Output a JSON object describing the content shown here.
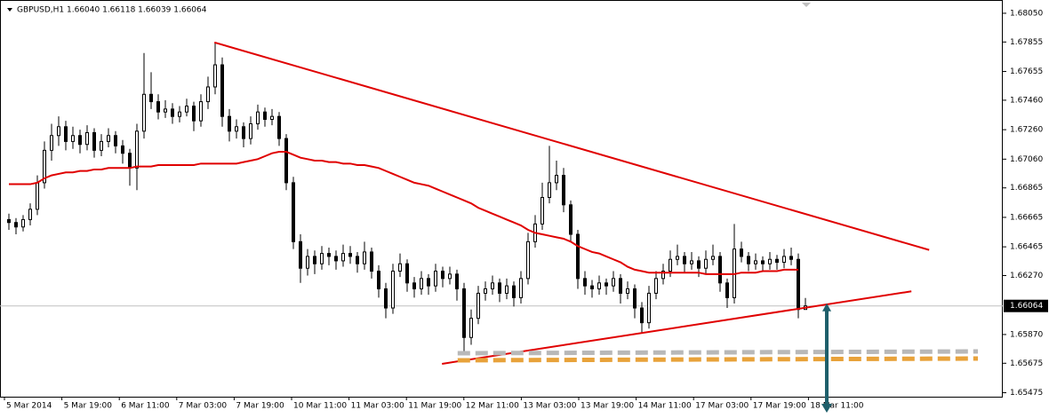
{
  "chart_data": {
    "type": "candlestick",
    "title": "GBPUSD,H1  1.66040 1.66118 1.66039 1.66064",
    "categories": [
      "5 Mar 2014",
      "5 Mar 19:00",
      "6 Mar 11:00",
      "7 Mar 03:00",
      "7 Mar 19:00",
      "10 Mar 11:00",
      "11 Mar 03:00",
      "11 Mar 19:00",
      "12 Mar 11:00",
      "13 Mar 03:00",
      "13 Mar 19:00",
      "14 Mar 11:00",
      "17 Mar 03:00",
      "17 Mar 19:00",
      "18 Mar 11:00"
    ],
    "ylim": [
      1.65448,
      1.6814
    ],
    "yticks": [
      {
        "value": 1.6805,
        "label": "1.68050"
      },
      1.67855,
      1.67655,
      {
        "value": 1.6746,
        "label": "1.67460"
      },
      {
        "value": 1.6726,
        "label": "1.67260"
      },
      {
        "value": 1.6706,
        "label": "1.67060"
      },
      1.66865,
      1.66665,
      1.66465,
      {
        "value": 1.6627,
        "label": "1.66270"
      },
      {
        "value": 1.6587,
        "label": "1.65870"
      },
      1.65675,
      1.65475
    ],
    "current_price": 1.66064,
    "up_color": "#ffffff",
    "down_color": "#000000",
    "ohlc": [
      [
        1.6665,
        1.6669,
        1.6658,
        1.6663
      ],
      [
        1.6663,
        1.6666,
        1.6655,
        1.666
      ],
      [
        1.666,
        1.6668,
        1.6657,
        1.6665
      ],
      [
        1.6665,
        1.6676,
        1.6661,
        1.6672
      ],
      [
        1.6672,
        1.6695,
        1.6668,
        1.669
      ],
      [
        1.669,
        1.6718,
        1.6686,
        1.6712
      ],
      [
        1.6712,
        1.673,
        1.6705,
        1.6722
      ],
      [
        1.6722,
        1.6735,
        1.6715,
        1.6728
      ],
      [
        1.6728,
        1.6732,
        1.6712,
        1.6718
      ],
      [
        1.6718,
        1.6728,
        1.6713,
        1.6722
      ],
      [
        1.6722,
        1.6726,
        1.671,
        1.6716
      ],
      [
        1.6716,
        1.6729,
        1.6712,
        1.6724
      ],
      [
        1.6724,
        1.6727,
        1.6707,
        1.6712
      ],
      [
        1.6712,
        1.6723,
        1.6708,
        1.6718
      ],
      [
        1.6718,
        1.6727,
        1.6714,
        1.6722
      ],
      [
        1.6722,
        1.6725,
        1.671,
        1.6715
      ],
      [
        1.6715,
        1.6719,
        1.6703,
        1.671
      ],
      [
        1.671,
        1.6713,
        1.6688,
        1.67
      ],
      [
        1.67,
        1.673,
        1.6685,
        1.6725
      ],
      [
        1.6725,
        1.6778,
        1.672,
        1.675
      ],
      [
        1.675,
        1.6765,
        1.674,
        1.6745
      ],
      [
        1.6745,
        1.675,
        1.6733,
        1.6738
      ],
      [
        1.6738,
        1.6746,
        1.6734,
        1.674
      ],
      [
        1.674,
        1.6744,
        1.673,
        1.6735
      ],
      [
        1.6735,
        1.6742,
        1.6731,
        1.6738
      ],
      [
        1.6738,
        1.6747,
        1.6735,
        1.6742
      ],
      [
        1.6742,
        1.6745,
        1.6725,
        1.6732
      ],
      [
        1.6732,
        1.675,
        1.6728,
        1.6745
      ],
      [
        1.6745,
        1.6762,
        1.674,
        1.6755
      ],
      [
        1.6755,
        1.6785,
        1.675,
        1.677
      ],
      [
        1.677,
        1.6775,
        1.6728,
        1.6735
      ],
      [
        1.6735,
        1.674,
        1.6718,
        1.6725
      ],
      [
        1.6725,
        1.6733,
        1.672,
        1.6728
      ],
      [
        1.6728,
        1.6731,
        1.6714,
        1.672
      ],
      [
        1.672,
        1.6735,
        1.6716,
        1.673
      ],
      [
        1.673,
        1.6743,
        1.6726,
        1.6738
      ],
      [
        1.6738,
        1.6741,
        1.6728,
        1.6733
      ],
      [
        1.6733,
        1.674,
        1.6729,
        1.6735
      ],
      [
        1.6735,
        1.6738,
        1.6715,
        1.672
      ],
      [
        1.672,
        1.6723,
        1.6685,
        1.669
      ],
      [
        1.669,
        1.6694,
        1.6645,
        1.665
      ],
      [
        1.665,
        1.6655,
        1.6622,
        1.6632
      ],
      [
        1.6632,
        1.6645,
        1.6627,
        1.664
      ],
      [
        1.664,
        1.6644,
        1.6628,
        1.6635
      ],
      [
        1.6635,
        1.6647,
        1.6631,
        1.6642
      ],
      [
        1.6642,
        1.6646,
        1.6634,
        1.664
      ],
      [
        1.664,
        1.6644,
        1.6631,
        1.6637
      ],
      [
        1.6637,
        1.6648,
        1.6633,
        1.6642
      ],
      [
        1.6642,
        1.6647,
        1.6635,
        1.664
      ],
      [
        1.664,
        1.6643,
        1.6629,
        1.6635
      ],
      [
        1.6635,
        1.665,
        1.6631,
        1.6643
      ],
      [
        1.6643,
        1.6646,
        1.6625,
        1.663
      ],
      [
        1.663,
        1.6634,
        1.6612,
        1.6618
      ],
      [
        1.6618,
        1.6622,
        1.6598,
        1.6605
      ],
      [
        1.6605,
        1.6635,
        1.6601,
        1.663
      ],
      [
        1.663,
        1.6642,
        1.6626,
        1.6635
      ],
      [
        1.6635,
        1.6638,
        1.6616,
        1.6622
      ],
      [
        1.6622,
        1.6626,
        1.6612,
        1.6618
      ],
      [
        1.6618,
        1.663,
        1.6614,
        1.6625
      ],
      [
        1.6625,
        1.6628,
        1.6614,
        1.662
      ],
      [
        1.662,
        1.6635,
        1.6616,
        1.663
      ],
      [
        1.663,
        1.6633,
        1.6619,
        1.6625
      ],
      [
        1.6625,
        1.6633,
        1.6621,
        1.6628
      ],
      [
        1.6628,
        1.6631,
        1.661,
        1.6618
      ],
      [
        1.6618,
        1.6622,
        1.6575,
        1.6585
      ],
      [
        1.6585,
        1.6604,
        1.658,
        1.6598
      ],
      [
        1.6598,
        1.662,
        1.6594,
        1.6615
      ],
      [
        1.6615,
        1.6623,
        1.661,
        1.6618
      ],
      [
        1.6618,
        1.6627,
        1.6614,
        1.6622
      ],
      [
        1.6622,
        1.6625,
        1.6609,
        1.6615
      ],
      [
        1.6615,
        1.6625,
        1.6611,
        1.662
      ],
      [
        1.662,
        1.6623,
        1.6606,
        1.6612
      ],
      [
        1.6612,
        1.663,
        1.6608,
        1.6625
      ],
      [
        1.6625,
        1.6656,
        1.6621,
        1.665
      ],
      [
        1.665,
        1.6668,
        1.6646,
        1.6662
      ],
      [
        1.6662,
        1.669,
        1.6658,
        1.668
      ],
      [
        1.668,
        1.6715,
        1.6676,
        1.669
      ],
      [
        1.669,
        1.6705,
        1.6685,
        1.6695
      ],
      [
        1.6695,
        1.67,
        1.667,
        1.6675
      ],
      [
        1.6675,
        1.6678,
        1.665,
        1.6655
      ],
      [
        1.6655,
        1.6658,
        1.6618,
        1.6625
      ],
      [
        1.6625,
        1.663,
        1.6614,
        1.662
      ],
      [
        1.662,
        1.6624,
        1.6612,
        1.6618
      ],
      [
        1.6618,
        1.6627,
        1.6614,
        1.6622
      ],
      [
        1.6622,
        1.6625,
        1.6614,
        1.662
      ],
      [
        1.662,
        1.663,
        1.6616,
        1.6625
      ],
      [
        1.6625,
        1.6628,
        1.6608,
        1.6615
      ],
      [
        1.6615,
        1.6623,
        1.6611,
        1.6618
      ],
      [
        1.6618,
        1.6621,
        1.6598,
        1.6605
      ],
      [
        1.6605,
        1.6609,
        1.6588,
        1.6595
      ],
      [
        1.6595,
        1.662,
        1.6591,
        1.6615
      ],
      [
        1.6615,
        1.663,
        1.6611,
        1.6625
      ],
      [
        1.6625,
        1.6635,
        1.6621,
        1.663
      ],
      [
        1.663,
        1.6644,
        1.6626,
        1.6638
      ],
      [
        1.6638,
        1.6648,
        1.6634,
        1.664
      ],
      [
        1.664,
        1.6643,
        1.6629,
        1.6635
      ],
      [
        1.6635,
        1.6643,
        1.6631,
        1.6637
      ],
      [
        1.6637,
        1.664,
        1.6626,
        1.6632
      ],
      [
        1.6632,
        1.6644,
        1.6628,
        1.6638
      ],
      [
        1.6638,
        1.6648,
        1.6634,
        1.664
      ],
      [
        1.664,
        1.6643,
        1.6616,
        1.6622
      ],
      [
        1.6622,
        1.6625,
        1.6605,
        1.6612
      ],
      [
        1.6612,
        1.6662,
        1.6608,
        1.6645
      ],
      [
        1.6645,
        1.665,
        1.6636,
        1.664
      ],
      [
        1.664,
        1.6643,
        1.663,
        1.6635
      ],
      [
        1.6635,
        1.6642,
        1.6631,
        1.6637
      ],
      [
        1.6637,
        1.664,
        1.663,
        1.6635
      ],
      [
        1.6635,
        1.6643,
        1.6631,
        1.6638
      ],
      [
        1.6638,
        1.6641,
        1.6631,
        1.6636
      ],
      [
        1.6636,
        1.6645,
        1.6632,
        1.664
      ],
      [
        1.664,
        1.6646,
        1.6634,
        1.6638
      ],
      [
        1.6638,
        1.6642,
        1.6598,
        1.6604
      ],
      [
        1.6604,
        1.66118,
        1.66039,
        1.66064
      ]
    ],
    "moving_average": {
      "color": "#e00000",
      "values": [
        1.6689,
        1.6689,
        1.6689,
        1.6689,
        1.669,
        1.6693,
        1.6695,
        1.6696,
        1.6697,
        1.6697,
        1.6698,
        1.6698,
        1.6699,
        1.6699,
        1.67,
        1.67,
        1.67,
        1.67,
        1.6701,
        1.6701,
        1.6701,
        1.6702,
        1.6702,
        1.6702,
        1.6702,
        1.6702,
        1.6702,
        1.6703,
        1.6703,
        1.6703,
        1.6703,
        1.6703,
        1.6703,
        1.6704,
        1.6705,
        1.6706,
        1.6708,
        1.671,
        1.6711,
        1.6711,
        1.6709,
        1.6707,
        1.6706,
        1.6705,
        1.6705,
        1.6704,
        1.6704,
        1.6703,
        1.6703,
        1.6702,
        1.6702,
        1.6701,
        1.67,
        1.6698,
        1.6696,
        1.6694,
        1.6692,
        1.669,
        1.6689,
        1.6688,
        1.6686,
        1.6684,
        1.6682,
        1.668,
        1.6678,
        1.6676,
        1.6673,
        1.6671,
        1.6669,
        1.6667,
        1.6665,
        1.6663,
        1.6661,
        1.6658,
        1.6656,
        1.6655,
        1.6654,
        1.6653,
        1.6652,
        1.665,
        1.6647,
        1.6645,
        1.6643,
        1.6642,
        1.664,
        1.6638,
        1.6636,
        1.6633,
        1.6631,
        1.663,
        1.6629,
        1.6629,
        1.6629,
        1.6629,
        1.6629,
        1.6629,
        1.6629,
        1.6629,
        1.6628,
        1.6628,
        1.6628,
        1.6628,
        1.6628,
        1.6629,
        1.6629,
        1.6629,
        1.663,
        1.663,
        1.663,
        1.6631,
        1.6631,
        1.6631,
        null
      ]
    },
    "trendlines": [
      {
        "color": "#e00000",
        "style": "solid",
        "x": [
          28.9,
          129.4
        ],
        "y": [
          1.67852,
          1.66444
        ]
      },
      {
        "color": "#e00000",
        "style": "solid",
        "x": [
          60.9,
          126.9
        ],
        "y": [
          1.65671,
          1.66163
        ]
      },
      {
        "color": "#b8b8b8",
        "style": "dashed",
        "x": [
          63.1,
          136.25
        ],
        "y": [
          1.65743,
          1.65755
        ]
      },
      {
        "color": "#e8a23a",
        "style": "dashed",
        "x": [
          63.1,
          136.25
        ],
        "y": [
          1.65695,
          1.65707
        ]
      }
    ],
    "arrow": {
      "color": "#1f5f6b",
      "x": 115,
      "from": 1.66064,
      "to": 1.65448
    }
  }
}
